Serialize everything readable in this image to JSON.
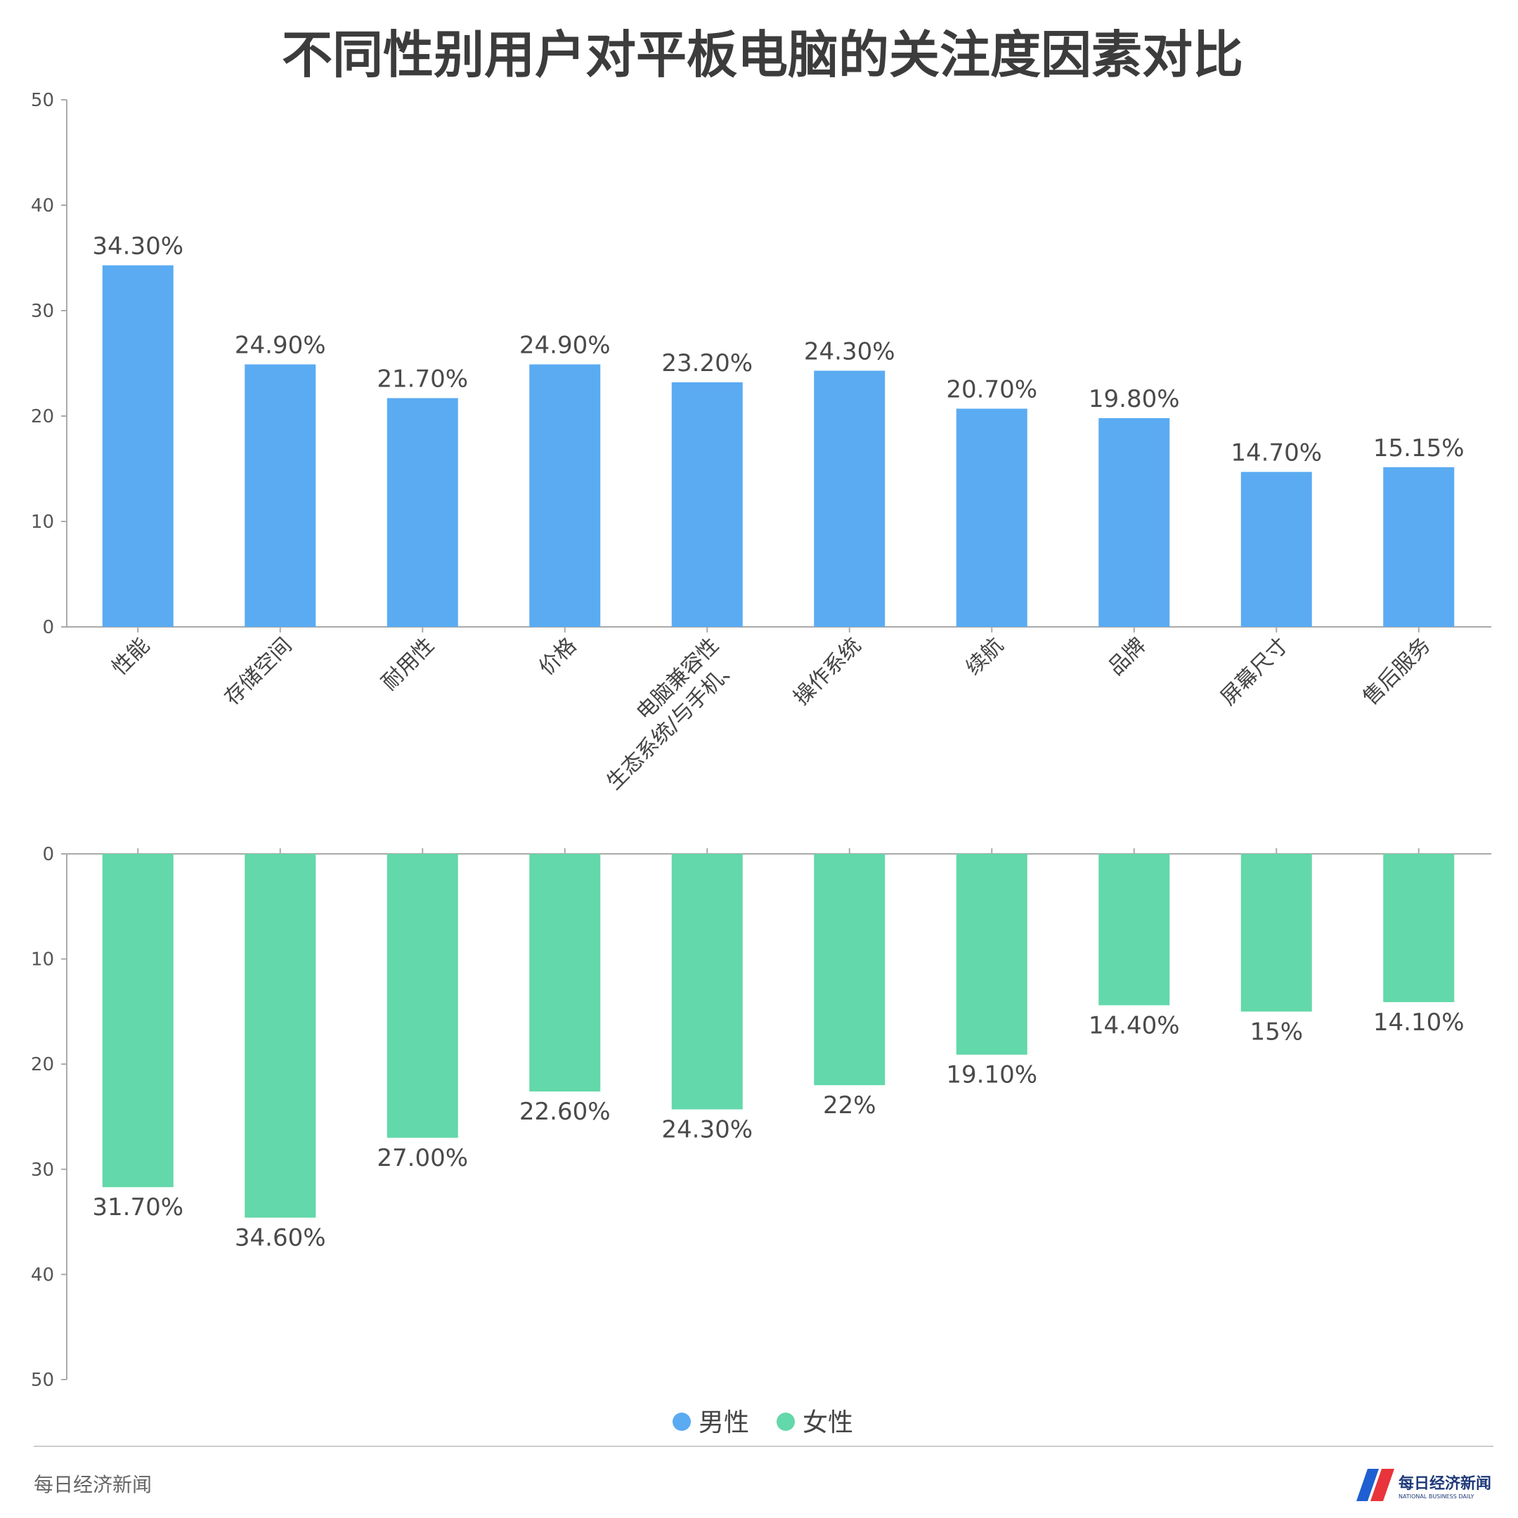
{
  "title": "不同性别用户对平板电脑的关注度因素对比",
  "colors": {
    "male": "#5aabf2",
    "female": "#63d8aa",
    "axis": "#999999",
    "text": "#444444"
  },
  "chart_data": [
    {
      "type": "bar",
      "series_name": "男性",
      "direction": "up",
      "categories": [
        "性能",
        "存储空间",
        "耐用性",
        "价格",
        "生态系统/与手机、电脑兼容性",
        "操作系统",
        "续航",
        "品牌",
        "屏幕尺寸",
        "售后服务"
      ],
      "values": [
        34.3,
        24.9,
        21.7,
        24.9,
        23.2,
        24.3,
        20.7,
        19.8,
        14.7,
        15.15
      ],
      "labels": [
        "34.30%",
        "24.90%",
        "21.70%",
        "24.90%",
        "23.20%",
        "24.30%",
        "20.70%",
        "19.80%",
        "14.70%",
        "15.15%"
      ],
      "ylim": [
        0,
        50
      ],
      "yticks": [
        "0",
        "10",
        "20",
        "30",
        "40",
        "50"
      ]
    },
    {
      "type": "bar",
      "series_name": "女性",
      "direction": "down",
      "categories": [
        "性能",
        "存储空间",
        "耐用性",
        "价格",
        "生态系统/与手机、电脑兼容性",
        "操作系统",
        "续航",
        "品牌",
        "屏幕尺寸",
        "售后服务"
      ],
      "values": [
        31.7,
        34.6,
        27.0,
        22.6,
        24.3,
        22.0,
        19.1,
        14.4,
        15.0,
        14.1
      ],
      "labels": [
        "31.70%",
        "34.60%",
        "27.00%",
        "22.60%",
        "24.30%",
        "22%",
        "19.10%",
        "14.40%",
        "15%",
        "14.10%"
      ],
      "ylim": [
        0,
        50
      ],
      "yticks": [
        "0",
        "10",
        "20",
        "30",
        "40",
        "50"
      ]
    }
  ],
  "cat_label_lines": {
    "4": [
      "电脑兼容性",
      "生态系统/与手机、"
    ]
  },
  "legend": [
    {
      "name": "男性",
      "color_key": "male"
    },
    {
      "name": "女性",
      "color_key": "female"
    }
  ],
  "footer": {
    "source": "每日经济新闻"
  },
  "logo": {
    "text": "每日经济新闻",
    "subtext": "NATIONAL BUSINESS DAILY"
  }
}
